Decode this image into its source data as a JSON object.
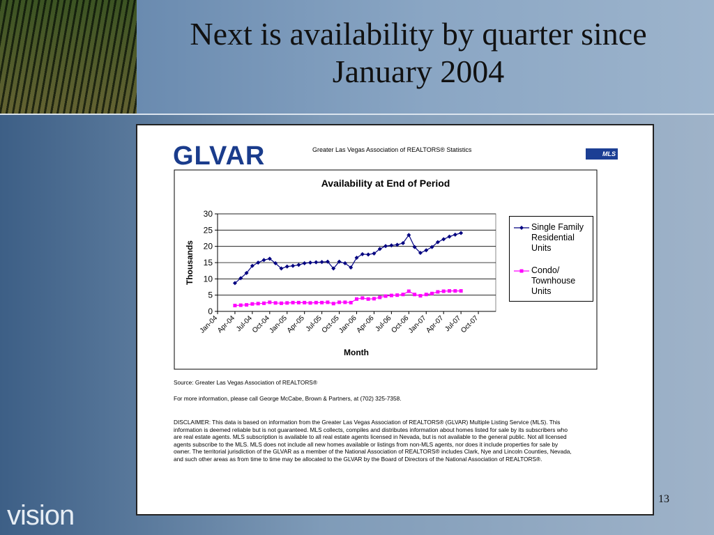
{
  "slide": {
    "title": "Next is availability by quarter since January 2004",
    "brand": "vision",
    "page_number": "13"
  },
  "document": {
    "logo": "GLVAR",
    "header": "Greater Las Vegas Association of REALTORS® Statistics",
    "badge": "MLS",
    "source": "Source: Greater Las Vegas Association of REALTORS®",
    "contact": "For more information, please call George McCabe, Brown & Partners, at (702) 325-7358.",
    "disclaimer": "DISCLAIMER: This data is based on information from the Greater Las Vegas Association of REALTORS® (GLVAR) Multiple Listing Service (MLS). This information is deemed reliable but is not guaranteed. MLS collects, compiles and distributes information about homes listed for sale by its subscribers who are real estate agents. MLS subscription is available to all real estate agents licensed in Nevada, but is not available to the general public. Not all licensed agents subscribe to the MLS. MLS does not include all new homes available or listings from non-MLS agents, nor does it include properties for sale by owner. The territorial jurisdiction of the GLVAR as a member of the National Association of REALTORS® includes Clark, Nye and Lincoln Counties, Nevada, and such other areas as from time to time may be allocated to the GLVAR by the Board of Directors of the National Association of REALTORS®."
  },
  "chart_data": {
    "type": "line",
    "title": "Availability at End of Period",
    "x_label": "Month",
    "y_label": "Thousands",
    "categories": [
      "Jan-04",
      null,
      null,
      "Apr-04",
      null,
      null,
      "Jul-04",
      null,
      null,
      "Oct-04",
      null,
      null,
      "Jan-05",
      null,
      null,
      "Apr-05",
      null,
      null,
      "Jul-05",
      null,
      null,
      "Oct-05",
      null,
      null,
      "Jan-06",
      null,
      null,
      "Apr-06",
      null,
      null,
      "Jul-06",
      null,
      null,
      "Oct-06",
      null,
      null,
      "Jan-07",
      null,
      null,
      "Apr-07",
      null,
      null,
      "Jul-07",
      null,
      null,
      "Oct-07",
      null,
      null
    ],
    "series": [
      {
        "name": "Single Family Residential Units",
        "color": "#000080",
        "marker": "diamond",
        "values": [
          null,
          null,
          null,
          8.7,
          10.2,
          11.8,
          14,
          15,
          15.8,
          16.2,
          14.8,
          13.2,
          13.8,
          14,
          14.3,
          14.8,
          15,
          15.1,
          15.2,
          15.3,
          13.2,
          15.3,
          14.8,
          13.5,
          16.5,
          17.6,
          17.5,
          17.8,
          19.2,
          20.1,
          20.3,
          20.5,
          21,
          23.5,
          19.8,
          18,
          18.8,
          19.8,
          21.3,
          22.2,
          23,
          23.6,
          24.1,
          null,
          null,
          null,
          null,
          null
        ]
      },
      {
        "name": "Condo/ Townhouse Units",
        "color": "#ff00ff",
        "marker": "square",
        "values": [
          null,
          null,
          null,
          1.8,
          1.9,
          2,
          2.3,
          2.4,
          2.5,
          2.8,
          2.6,
          2.5,
          2.6,
          2.7,
          2.7,
          2.7,
          2.6,
          2.7,
          2.7,
          2.8,
          2.4,
          2.8,
          2.8,
          2.7,
          3.8,
          4.1,
          3.8,
          3.9,
          4.3,
          4.7,
          4.9,
          5,
          5.2,
          6.2,
          5.2,
          4.8,
          5.2,
          5.5,
          6,
          6.2,
          6.3,
          6.3,
          6.3,
          null,
          null,
          null,
          null,
          null
        ]
      }
    ],
    "ylim": [
      0,
      30
    ],
    "yticks": [
      0,
      5,
      10,
      15,
      20,
      25,
      30
    ],
    "grid": true,
    "legend": "right"
  }
}
